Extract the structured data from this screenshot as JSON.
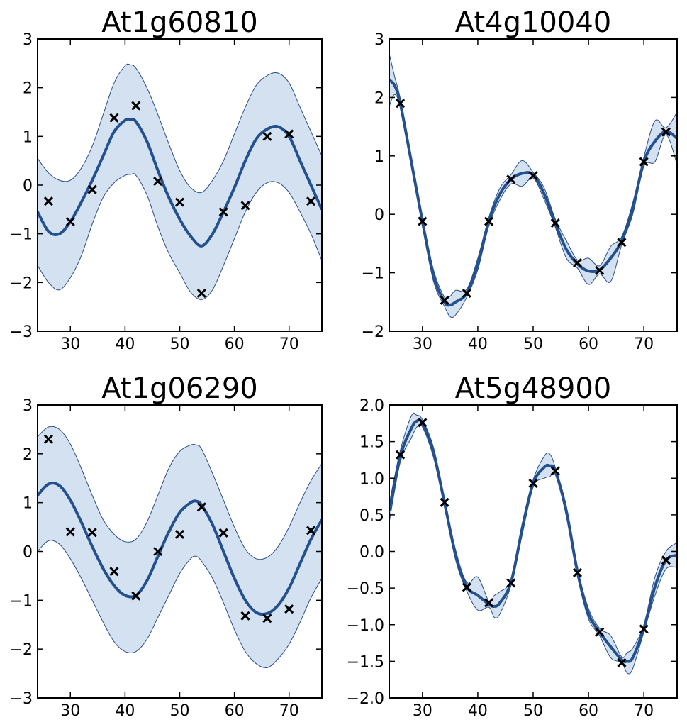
{
  "chart_data": [
    {
      "type": "line",
      "title": "At1g60810",
      "xlim": [
        24,
        76
      ],
      "ylim": [
        -3,
        3
      ],
      "xticks": [
        30,
        40,
        50,
        60,
        70
      ],
      "yticks": [
        -3,
        -2,
        -1,
        0,
        1,
        2,
        3
      ],
      "ytick_labels": [
        "−3",
        "−2",
        "−1",
        "0",
        "1",
        "2",
        "3"
      ],
      "grid": false,
      "series": [
        {
          "name": "mean",
          "x": [
            24,
            26,
            28,
            30,
            32,
            34,
            36,
            38,
            40,
            41,
            42,
            44,
            46,
            48,
            50,
            52,
            54,
            56,
            58,
            60,
            62,
            64,
            66,
            68,
            70,
            72,
            74,
            76
          ],
          "y": [
            -0.55,
            -0.95,
            -1.0,
            -0.75,
            -0.35,
            0.1,
            0.6,
            1.1,
            1.33,
            1.35,
            1.3,
            0.9,
            0.3,
            -0.25,
            -0.7,
            -1.05,
            -1.25,
            -1.0,
            -0.55,
            -0.05,
            0.5,
            0.95,
            1.15,
            1.2,
            1.0,
            0.5,
            0.0,
            -0.5
          ]
        },
        {
          "name": "upper",
          "x": [
            24,
            26,
            28,
            30,
            32,
            34,
            36,
            38,
            40,
            41,
            42,
            44,
            46,
            48,
            50,
            52,
            54,
            56,
            58,
            60,
            62,
            64,
            66,
            68,
            70,
            72,
            74,
            76
          ],
          "y": [
            0.55,
            0.25,
            0.1,
            0.1,
            0.35,
            0.8,
            1.45,
            2.1,
            2.45,
            2.47,
            2.4,
            2.0,
            1.45,
            0.85,
            0.3,
            -0.05,
            -0.15,
            0.1,
            0.5,
            1.05,
            1.6,
            2.05,
            2.25,
            2.3,
            2.1,
            1.6,
            1.1,
            0.6
          ]
        },
        {
          "name": "lower",
          "x": [
            24,
            26,
            28,
            30,
            32,
            34,
            36,
            38,
            40,
            41,
            42,
            44,
            46,
            48,
            50,
            52,
            54,
            56,
            58,
            60,
            62,
            64,
            66,
            68,
            70,
            72,
            74,
            76
          ],
          "y": [
            -1.65,
            -2.0,
            -2.15,
            -1.9,
            -1.45,
            -0.8,
            -0.25,
            0.05,
            0.2,
            0.22,
            0.2,
            -0.2,
            -0.85,
            -1.4,
            -1.8,
            -2.2,
            -2.35,
            -2.15,
            -1.65,
            -1.1,
            -0.55,
            -0.15,
            0.05,
            0.05,
            -0.15,
            -0.55,
            -1.0,
            -1.55
          ]
        },
        {
          "name": "observations",
          "x": [
            26,
            30,
            34,
            38,
            42,
            46,
            50,
            54,
            58,
            62,
            66,
            70,
            74
          ],
          "y": [
            -0.33,
            -0.75,
            -0.09,
            1.38,
            1.63,
            0.08,
            -0.35,
            -2.22,
            -0.55,
            -0.42,
            1.0,
            1.05,
            -0.33
          ]
        }
      ]
    },
    {
      "type": "line",
      "title": "At4g10040",
      "xlim": [
        24,
        76
      ],
      "ylim": [
        -2,
        3
      ],
      "xticks": [
        30,
        40,
        50,
        60,
        70
      ],
      "yticks": [
        -2,
        -1,
        0,
        1,
        2,
        3
      ],
      "ytick_labels": [
        "−2",
        "−1",
        "0",
        "1",
        "2",
        "3"
      ],
      "grid": false,
      "series": [
        {
          "name": "mean",
          "x": [
            24,
            25,
            26,
            28,
            30,
            32,
            34,
            35,
            36,
            38,
            40,
            42,
            44,
            46,
            48,
            50,
            52,
            54,
            56,
            58,
            60,
            62,
            64,
            66,
            68,
            70,
            72,
            74,
            76
          ],
          "y": [
            2.3,
            2.2,
            1.9,
            0.9,
            -0.12,
            -1.05,
            -1.5,
            -1.55,
            -1.5,
            -1.35,
            -0.85,
            -0.12,
            0.35,
            0.6,
            0.7,
            0.68,
            0.35,
            -0.15,
            -0.6,
            -0.85,
            -0.97,
            -0.95,
            -0.75,
            -0.45,
            0.1,
            0.9,
            1.25,
            1.42,
            1.3
          ]
        },
        {
          "name": "upper",
          "x": [
            24,
            25,
            26,
            28,
            30,
            32,
            34,
            35,
            36,
            38,
            40,
            42,
            44,
            46,
            48,
            50,
            52,
            54,
            56,
            58,
            60,
            62,
            64,
            66,
            68,
            70,
            72,
            74,
            76
          ],
          "y": [
            2.75,
            2.35,
            1.98,
            0.95,
            -0.05,
            -0.95,
            -1.42,
            -1.4,
            -1.3,
            -1.28,
            -0.75,
            -0.05,
            0.45,
            0.68,
            0.92,
            0.72,
            0.45,
            -0.08,
            -0.45,
            -0.78,
            -0.75,
            -0.88,
            -0.55,
            -0.38,
            0.2,
            0.98,
            1.6,
            1.48,
            1.75
          ]
        },
        {
          "name": "lower",
          "x": [
            24,
            25,
            26,
            28,
            30,
            32,
            34,
            35,
            36,
            38,
            40,
            42,
            44,
            46,
            48,
            50,
            52,
            54,
            56,
            58,
            60,
            62,
            64,
            66,
            68,
            70,
            72,
            74,
            76
          ],
          "y": [
            1.85,
            2.05,
            1.82,
            0.85,
            -0.2,
            -1.15,
            -1.58,
            -1.75,
            -1.72,
            -1.42,
            -0.95,
            -0.2,
            0.25,
            0.52,
            0.48,
            0.62,
            0.25,
            -0.22,
            -0.75,
            -0.92,
            -1.2,
            -1.02,
            -1.15,
            -0.52,
            0.0,
            0.82,
            0.9,
            1.36,
            0.85
          ]
        },
        {
          "name": "observations",
          "x": [
            26,
            30,
            34,
            38,
            42,
            46,
            50,
            54,
            58,
            62,
            66,
            70,
            74
          ],
          "y": [
            1.9,
            -0.12,
            -1.47,
            -1.35,
            -0.12,
            0.6,
            0.66,
            -0.15,
            -0.83,
            -0.96,
            -0.48,
            0.9,
            1.41
          ]
        }
      ]
    },
    {
      "type": "line",
      "title": "At1g06290",
      "xlim": [
        24,
        76
      ],
      "ylim": [
        -3,
        3
      ],
      "xticks": [
        30,
        40,
        50,
        60,
        70
      ],
      "yticks": [
        -3,
        -2,
        -1,
        0,
        1,
        2,
        3
      ],
      "ytick_labels": [
        "−3",
        "−2",
        "−1",
        "0",
        "1",
        "2",
        "3"
      ],
      "grid": false,
      "series": [
        {
          "name": "mean",
          "x": [
            24,
            26,
            28,
            30,
            32,
            34,
            36,
            38,
            40,
            42,
            44,
            46,
            48,
            50,
            52,
            53,
            54,
            56,
            58,
            60,
            62,
            64,
            66,
            68,
            70,
            72,
            74,
            76
          ],
          "y": [
            1.15,
            1.38,
            1.35,
            1.05,
            0.6,
            0.1,
            -0.35,
            -0.7,
            -0.9,
            -0.9,
            -0.6,
            -0.1,
            0.4,
            0.8,
            1.0,
            1.03,
            0.95,
            0.55,
            0.0,
            -0.55,
            -1.0,
            -1.25,
            -1.27,
            -1.1,
            -0.75,
            -0.25,
            0.25,
            0.65
          ]
        },
        {
          "name": "upper",
          "x": [
            24,
            26,
            28,
            30,
            32,
            34,
            36,
            38,
            40,
            42,
            44,
            46,
            48,
            50,
            52,
            53,
            54,
            56,
            58,
            60,
            62,
            64,
            66,
            68,
            70,
            72,
            74,
            76
          ],
          "y": [
            2.35,
            2.55,
            2.5,
            2.2,
            1.7,
            1.15,
            0.65,
            0.35,
            0.2,
            0.25,
            0.6,
            1.15,
            1.7,
            2.05,
            2.18,
            2.18,
            2.1,
            1.6,
            1.05,
            0.5,
            0.05,
            -0.15,
            -0.12,
            0.1,
            0.5,
            1.0,
            1.45,
            1.8
          ]
        },
        {
          "name": "lower",
          "x": [
            24,
            26,
            28,
            30,
            32,
            34,
            36,
            38,
            40,
            42,
            44,
            46,
            48,
            50,
            52,
            53,
            54,
            56,
            58,
            60,
            62,
            64,
            66,
            68,
            70,
            72,
            74,
            76
          ],
          "y": [
            0.0,
            0.22,
            0.15,
            -0.15,
            -0.55,
            -1.0,
            -1.45,
            -1.85,
            -2.05,
            -2.05,
            -1.8,
            -1.35,
            -0.9,
            -0.45,
            -0.15,
            -0.1,
            -0.2,
            -0.55,
            -1.05,
            -1.6,
            -2.05,
            -2.3,
            -2.38,
            -2.2,
            -1.9,
            -1.45,
            -0.95,
            -0.55
          ]
        },
        {
          "name": "observations",
          "x": [
            26,
            30,
            34,
            38,
            42,
            46,
            50,
            54,
            58,
            62,
            66,
            70,
            74
          ],
          "y": [
            2.3,
            0.4,
            0.39,
            -0.41,
            -0.91,
            0.0,
            0.35,
            0.91,
            0.38,
            -1.32,
            -1.37,
            -1.18,
            0.43
          ]
        }
      ]
    },
    {
      "type": "line",
      "title": "At5g48900",
      "xlim": [
        24,
        76
      ],
      "ylim": [
        -2.0,
        2.0
      ],
      "xticks": [
        30,
        40,
        50,
        60,
        70
      ],
      "yticks": [
        -2.0,
        -1.5,
        -1.0,
        -0.5,
        0.0,
        0.5,
        1.0,
        1.5,
        2.0
      ],
      "ytick_labels": [
        "−2.0",
        "−1.5",
        "−1.0",
        "−0.5",
        "0.0",
        "0.5",
        "1.0",
        "1.5",
        "2.0"
      ],
      "grid": false,
      "series": [
        {
          "name": "mean",
          "x": [
            24,
            26,
            28,
            29,
            30,
            32,
            34,
            36,
            38,
            40,
            42,
            43,
            44,
            46,
            48,
            50,
            52,
            53,
            54,
            56,
            58,
            60,
            62,
            64,
            66,
            67,
            68,
            70,
            72,
            74,
            76
          ],
          "y": [
            0.55,
            1.3,
            1.68,
            1.78,
            1.75,
            1.35,
            0.66,
            -0.05,
            -0.48,
            -0.6,
            -0.72,
            -0.75,
            -0.7,
            -0.42,
            0.3,
            0.93,
            1.15,
            1.17,
            1.1,
            0.55,
            -0.28,
            -0.85,
            -1.1,
            -1.3,
            -1.48,
            -1.5,
            -1.45,
            -1.05,
            -0.48,
            -0.12,
            -0.05
          ]
        },
        {
          "name": "upper",
          "x": [
            24,
            26,
            28,
            29,
            30,
            32,
            34,
            36,
            38,
            40,
            42,
            43,
            44,
            46,
            48,
            50,
            52,
            53,
            54,
            56,
            58,
            60,
            62,
            64,
            66,
            67,
            68,
            70,
            72,
            74,
            76
          ],
          "y": [
            0.65,
            1.38,
            1.85,
            1.86,
            1.8,
            1.42,
            0.72,
            0.02,
            -0.42,
            -0.35,
            -0.68,
            -0.6,
            -0.55,
            -0.38,
            0.38,
            0.98,
            1.3,
            1.33,
            1.15,
            0.62,
            -0.22,
            -0.78,
            -1.05,
            -1.15,
            -1.44,
            -1.38,
            -1.32,
            -1.0,
            -0.35,
            0.0,
            0.12
          ]
        },
        {
          "name": "lower",
          "x": [
            24,
            26,
            28,
            29,
            30,
            32,
            34,
            36,
            38,
            40,
            42,
            43,
            44,
            46,
            48,
            50,
            52,
            53,
            54,
            56,
            58,
            60,
            62,
            64,
            66,
            67,
            68,
            70,
            72,
            74,
            76
          ],
          "y": [
            0.4,
            1.22,
            1.55,
            1.7,
            1.7,
            1.28,
            0.6,
            -0.12,
            -0.54,
            -0.8,
            -0.76,
            -0.9,
            -0.85,
            -0.46,
            0.22,
            0.88,
            1.0,
            1.02,
            1.05,
            0.48,
            -0.34,
            -0.92,
            -1.15,
            -1.45,
            -1.52,
            -1.66,
            -1.6,
            -1.1,
            -0.6,
            -0.24,
            -0.22
          ]
        },
        {
          "name": "observations",
          "x": [
            26,
            30,
            34,
            38,
            42,
            46,
            50,
            54,
            58,
            62,
            66,
            70,
            74
          ],
          "y": [
            1.32,
            1.76,
            0.67,
            -0.49,
            -0.7,
            -0.43,
            0.93,
            1.1,
            -0.29,
            -1.1,
            -1.52,
            -1.06,
            -0.12
          ]
        }
      ]
    }
  ]
}
